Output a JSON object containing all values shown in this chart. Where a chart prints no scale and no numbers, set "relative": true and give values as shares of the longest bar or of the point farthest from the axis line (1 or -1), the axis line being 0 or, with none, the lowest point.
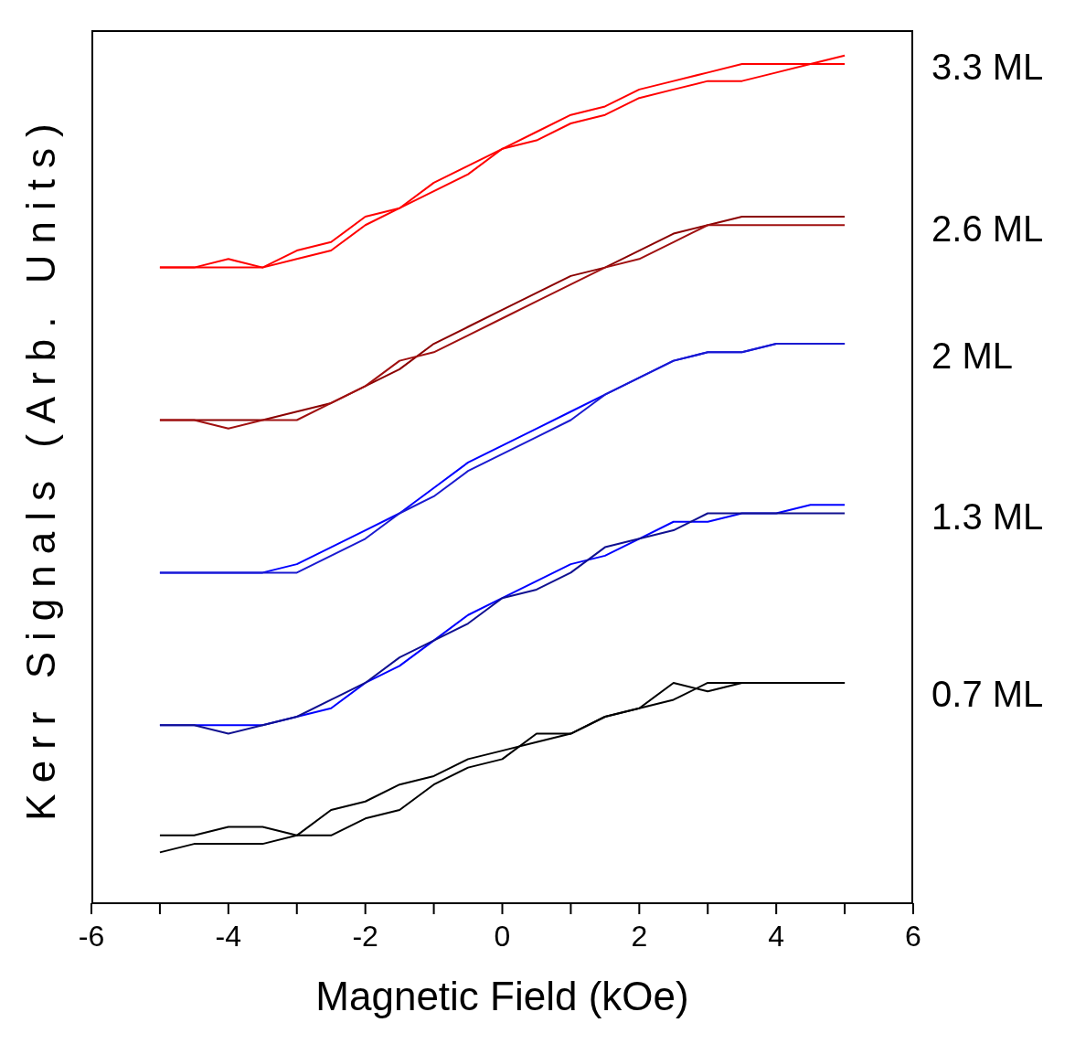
{
  "chart_data": {
    "type": "line",
    "relative": true,
    "xlabel": "Magnetic Field (kOe)",
    "ylabel": "Kerr Signals (Arb. Units)",
    "x": [
      -5,
      -4.5,
      -4,
      -3.5,
      -3,
      -2.5,
      -2,
      -1.5,
      -1,
      -0.5,
      0,
      0.5,
      1,
      1.5,
      2,
      2.5,
      3,
      3.5,
      4,
      4.5,
      5
    ],
    "xlim": [
      -6,
      6
    ],
    "xticks": [
      -6,
      {
        "value": -5,
        "label": null
      },
      -4,
      {
        "value": -3,
        "label": null
      },
      -2,
      {
        "value": -1,
        "label": null
      },
      0,
      {
        "value": 1,
        "label": null
      },
      2,
      {
        "value": 3,
        "label": null
      },
      4,
      {
        "value": 5,
        "label": null
      },
      6
    ],
    "grid": false,
    "legend": false,
    "marker": "none",
    "line_style": "solid",
    "series": [
      {
        "name": "3.3 ML",
        "color": "#ff0000",
        "values": [
          0.75,
          0.75,
          0.76,
          0.75,
          0.77,
          0.78,
          0.81,
          0.82,
          0.85,
          0.87,
          0.89,
          0.91,
          0.93,
          0.94,
          0.96,
          0.97,
          0.98,
          0.99,
          0.99,
          0.99,
          1.0
        ]
      },
      {
        "color": "#ff0000",
        "values": [
          0.75,
          0.75,
          0.75,
          0.75,
          0.76,
          0.77,
          0.8,
          0.82,
          0.84,
          0.86,
          0.89,
          0.9,
          0.92,
          0.93,
          0.95,
          0.96,
          0.97,
          0.97,
          0.98,
          0.99,
          0.99
        ]
      },
      {
        "name": "2.6 ML",
        "color": "#8b0000",
        "values": [
          0.57,
          0.57,
          0.57,
          0.57,
          0.58,
          0.59,
          0.61,
          0.63,
          0.66,
          0.68,
          0.7,
          0.72,
          0.74,
          0.75,
          0.77,
          0.79,
          0.8,
          0.81,
          0.81,
          0.81,
          0.81
        ]
      },
      {
        "color": "#a01010",
        "values": [
          0.57,
          0.57,
          0.56,
          0.57,
          0.57,
          0.59,
          0.61,
          0.64,
          0.65,
          0.67,
          0.69,
          0.71,
          0.73,
          0.75,
          0.76,
          0.78,
          0.8,
          0.8,
          0.8,
          0.8,
          0.8
        ]
      },
      {
        "name": "2 ML",
        "color": "#0000ff",
        "values": [
          0.39,
          0.39,
          0.39,
          0.39,
          0.4,
          0.42,
          0.44,
          0.46,
          0.49,
          0.52,
          0.54,
          0.56,
          0.58,
          0.6,
          0.62,
          0.64,
          0.65,
          0.65,
          0.66,
          0.66,
          0.66
        ]
      },
      {
        "color": "#1a1ad0",
        "values": [
          0.39,
          0.39,
          0.39,
          0.39,
          0.39,
          0.41,
          0.43,
          0.46,
          0.48,
          0.51,
          0.53,
          0.55,
          0.57,
          0.6,
          0.62,
          0.64,
          0.65,
          0.65,
          0.66,
          0.66,
          0.66
        ]
      },
      {
        "name": "1.3 ML",
        "color": "#0000ff",
        "values": [
          0.21,
          0.21,
          0.21,
          0.21,
          0.22,
          0.23,
          0.26,
          0.28,
          0.31,
          0.34,
          0.36,
          0.38,
          0.4,
          0.41,
          0.43,
          0.45,
          0.45,
          0.46,
          0.46,
          0.47,
          0.47
        ]
      },
      {
        "color": "#101090",
        "values": [
          0.21,
          0.21,
          0.2,
          0.21,
          0.22,
          0.24,
          0.26,
          0.29,
          0.31,
          0.33,
          0.36,
          0.37,
          0.39,
          0.42,
          0.43,
          0.44,
          0.46,
          0.46,
          0.46,
          0.46,
          0.46
        ]
      },
      {
        "name": "0.7 ML",
        "color": "#000000",
        "values": [
          0.08,
          0.08,
          0.09,
          0.09,
          0.08,
          0.11,
          0.12,
          0.14,
          0.15,
          0.17,
          0.18,
          0.19,
          0.2,
          0.22,
          0.23,
          0.24,
          0.26,
          0.26,
          0.26,
          0.26,
          0.26
        ]
      },
      {
        "color": "#000000",
        "values": [
          0.06,
          0.07,
          0.07,
          0.07,
          0.08,
          0.08,
          0.1,
          0.11,
          0.14,
          0.16,
          0.17,
          0.2,
          0.2,
          0.22,
          0.23,
          0.26,
          0.25,
          0.26,
          0.26,
          0.26,
          0.26
        ]
      }
    ]
  }
}
